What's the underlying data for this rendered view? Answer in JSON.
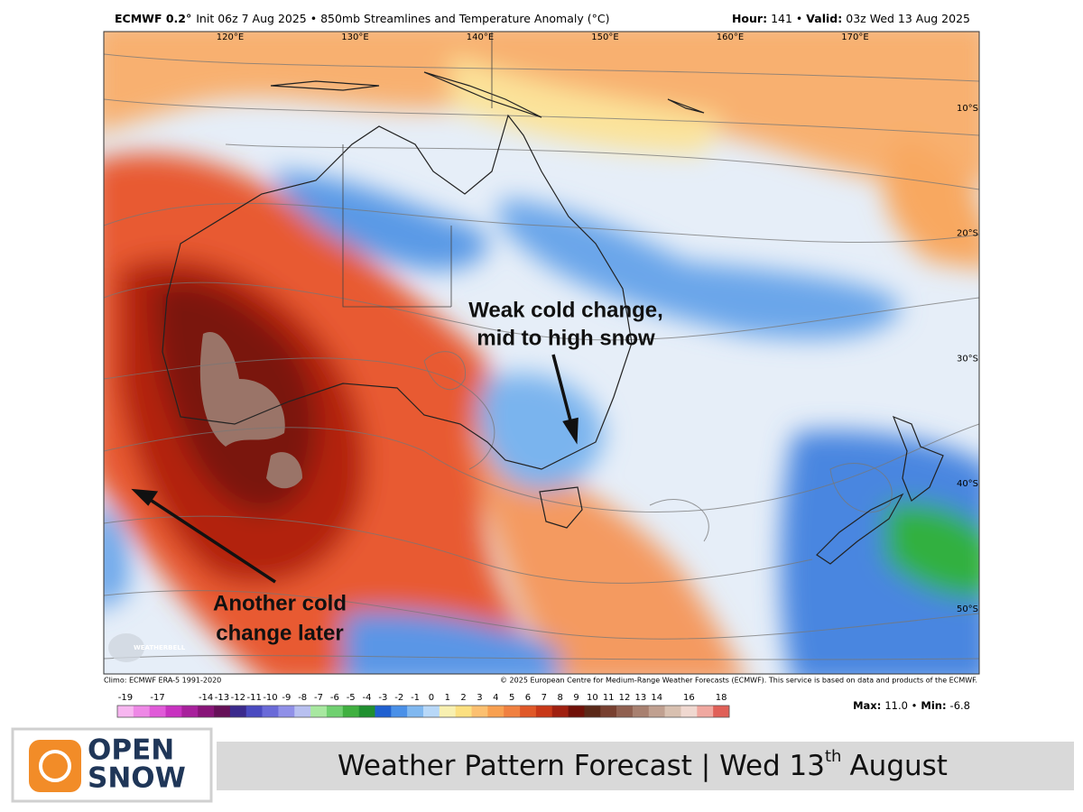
{
  "header": {
    "model": "ECMWF 0.2°",
    "subtitle": "Init 06z 7 Aug 2025 • 850mb Streamlines and Temperature Anomaly (°C)",
    "hour_label": "Hour:",
    "hour": "141 •",
    "valid_label": "Valid:",
    "valid": "03z Wed 13 Aug 2025"
  },
  "map": {
    "longitudes": [
      "120°E",
      "130°E",
      "140°E",
      "150°E",
      "160°E",
      "170°E"
    ],
    "latitudes": [
      "10°S",
      "20°S",
      "30°S",
      "40°S",
      "50°S"
    ],
    "annotations": [
      {
        "lines": [
          "Weak cold change,",
          "mid to high snow"
        ]
      },
      {
        "lines": [
          "Another cold",
          "change later"
        ]
      }
    ],
    "watermark": "WEATHERBELL",
    "climo": "Climo: ECMWF ERA-5 1991-2020",
    "credit": "© 2025 European Centre for Medium-Range Weather Forecasts (ECMWF). This service is based on data and products of the ECMWF."
  },
  "colorbar": {
    "ticks": [
      -19,
      -17,
      -14,
      -13,
      -12,
      -11,
      -10,
      -9,
      -8,
      -7,
      -6,
      -5,
      -4,
      -3,
      -2,
      -1,
      0,
      1,
      2,
      3,
      4,
      5,
      6,
      7,
      8,
      9,
      10,
      11,
      12,
      13,
      14,
      16,
      18
    ],
    "colors": [
      "#f7b6f0",
      "#ee88e6",
      "#e05ad8",
      "#c832c0",
      "#a8209c",
      "#881478",
      "#661058",
      "#3b2a8c",
      "#4a4ac0",
      "#6a6ad8",
      "#9090e8",
      "#b8c0f0",
      "#a8e8a0",
      "#70d070",
      "#40b040",
      "#209030",
      "#2060d0",
      "#4a90e8",
      "#80b8f0",
      "#b8d8f8",
      "#f8f0b0",
      "#fce080",
      "#fcc070",
      "#f8a050",
      "#f08040",
      "#e05828",
      "#c83818",
      "#a02010",
      "#701008",
      "#5a2818",
      "#784030",
      "#906050",
      "#a88070",
      "#c0a090",
      "#d8c0b0",
      "#f0d8d0",
      "#f0a8a0",
      "#e06058"
    ]
  },
  "stats": {
    "max_label": "Max:",
    "max": "11.0 •",
    "min_label": "Min:",
    "min": "-6.8"
  },
  "footer": {
    "logo_top": "OPEN",
    "logo_bottom": "SNOW",
    "banner": "Weather Pattern Forecast | Wed 13",
    "banner_sup": "th",
    "banner_end": "August"
  }
}
